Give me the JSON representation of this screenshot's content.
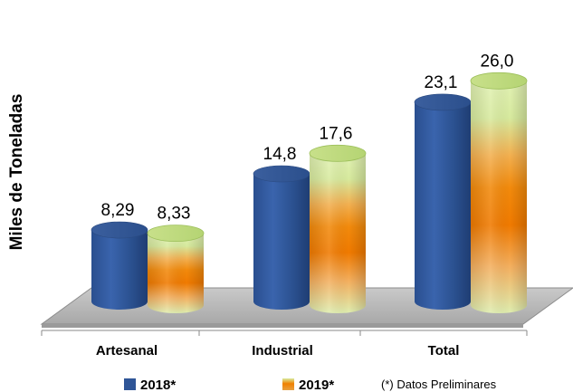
{
  "chart_data": {
    "type": "bar",
    "ylabel": "Miles de Toneladas",
    "categories": [
      "Artesanal",
      "Industrial",
      "Total"
    ],
    "series": [
      {
        "name": "2018*",
        "values": [
          8.29,
          14.8,
          23.1
        ],
        "labels": [
          "8,29",
          "14,8",
          "23,1"
        ],
        "color": "#2f5597"
      },
      {
        "name": "2019*",
        "values": [
          8.33,
          17.6,
          26.0
        ],
        "labels": [
          "8,33",
          "17,6",
          "26,0"
        ],
        "color": "#f08000"
      }
    ],
    "ylim": [
      0,
      28
    ],
    "grid": false,
    "legend_position": "bottom",
    "note": "(*) Datos Preliminares"
  }
}
